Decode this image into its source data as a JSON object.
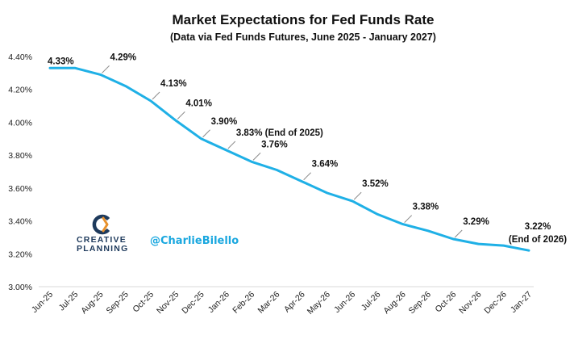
{
  "chart_data": {
    "type": "line",
    "title": "Market Expectations for Fed Funds Rate",
    "subtitle": "(Data via Fed Funds Futures, June 2025 - January 2027)",
    "xlabel": "",
    "ylabel": "",
    "ylim": [
      3.0,
      4.4
    ],
    "y_ticks": [
      "3.00%",
      "3.20%",
      "3.40%",
      "3.60%",
      "3.80%",
      "4.00%",
      "4.20%",
      "4.40%"
    ],
    "y_tick_values": [
      3.0,
      3.2,
      3.4,
      3.6,
      3.8,
      4.0,
      4.2,
      4.4
    ],
    "grid": false,
    "categories": [
      "Jun-25",
      "Jul-25",
      "Aug-25",
      "Sep-25",
      "Oct-25",
      "Nov-25",
      "Dec-25",
      "Jan-26",
      "Feb-26",
      "Mar-26",
      "Apr-26",
      "May-26",
      "Jun-26",
      "Jul-26",
      "Aug-26",
      "Sep-26",
      "Oct-26",
      "Nov-26",
      "Dec-26",
      "Jan-27"
    ],
    "series": [
      {
        "color": "#1fb0e6",
        "values": [
          4.33,
          4.33,
          4.29,
          4.22,
          4.13,
          4.01,
          3.9,
          3.83,
          3.76,
          3.71,
          3.64,
          3.57,
          3.52,
          3.44,
          3.38,
          3.34,
          3.29,
          3.26,
          3.25,
          3.22
        ]
      }
    ],
    "annotations": [
      {
        "index": 0,
        "lines": [
          "4.33%"
        ]
      },
      {
        "index": 2,
        "lines": [
          "4.29%"
        ]
      },
      {
        "index": 4,
        "lines": [
          "4.13%"
        ]
      },
      {
        "index": 5,
        "lines": [
          "4.01%"
        ]
      },
      {
        "index": 6,
        "lines": [
          "3.90%"
        ]
      },
      {
        "index": 7,
        "lines": [
          "3.83% (End of 2025)"
        ]
      },
      {
        "index": 8,
        "lines": [
          "3.76%"
        ]
      },
      {
        "index": 10,
        "lines": [
          "3.64%"
        ]
      },
      {
        "index": 12,
        "lines": [
          "3.52%"
        ]
      },
      {
        "index": 14,
        "lines": [
          "3.38%"
        ]
      },
      {
        "index": 16,
        "lines": [
          "3.29%"
        ]
      },
      {
        "index": 19,
        "lines": [
          "3.22%",
          "(End of 2026)"
        ]
      }
    ]
  },
  "branding": {
    "logo_line1": "CREATIVE",
    "logo_line2": "PLANNING",
    "logo_icon": "creative-planning-c-logo-icon",
    "handle": "@CharlieBilello",
    "accent_color": "#19a7df",
    "logo_color": "#1e3a5c",
    "logo_accent": "#e8912d"
  }
}
